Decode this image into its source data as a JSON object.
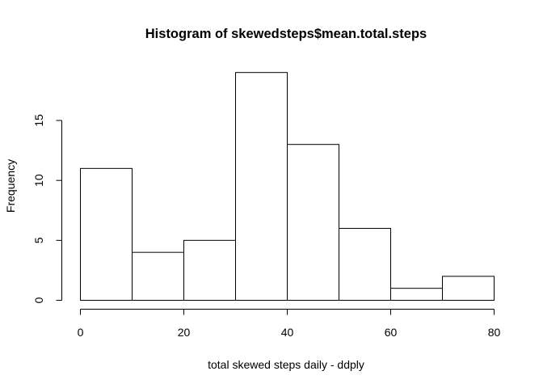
{
  "chart_data": {
    "type": "bar",
    "subtype": "histogram",
    "title": "Histogram of skewedsteps$mean.total.steps",
    "xlabel": "total skewed steps daily - ddply",
    "ylabel": "Frequency",
    "bins": [
      {
        "start": 0,
        "end": 10,
        "count": 11
      },
      {
        "start": 10,
        "end": 20,
        "count": 4
      },
      {
        "start": 20,
        "end": 30,
        "count": 5
      },
      {
        "start": 30,
        "end": 40,
        "count": 19
      },
      {
        "start": 40,
        "end": 50,
        "count": 13
      },
      {
        "start": 50,
        "end": 60,
        "count": 6
      },
      {
        "start": 60,
        "end": 70,
        "count": 1
      },
      {
        "start": 70,
        "end": 80,
        "count": 2
      }
    ],
    "xlim": [
      0,
      80
    ],
    "ylim": [
      0,
      19
    ],
    "xticks": [
      0,
      20,
      40,
      60,
      80
    ],
    "yticks": [
      0,
      5,
      10,
      15
    ],
    "grid": false,
    "bar_fill": "#ffffff",
    "bar_stroke": "#000000"
  }
}
